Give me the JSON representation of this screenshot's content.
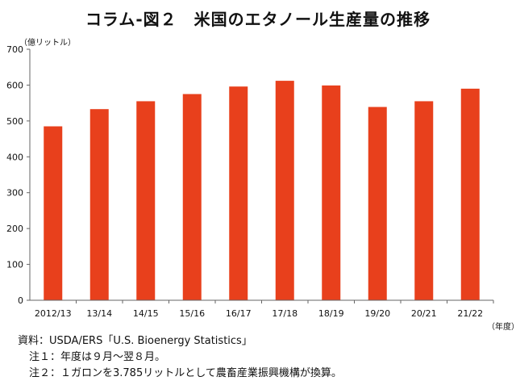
{
  "title": "コラム-図２　米国のエタノール生産量の推移",
  "chart_data": {
    "type": "bar",
    "title": "コラム-図２　米国のエタノール生産量の推移",
    "ylabel": "（億リットル）",
    "xlabel": "（年度）",
    "categories": [
      "2012/13",
      "13/14",
      "14/15",
      "15/16",
      "16/17",
      "17/18",
      "18/19",
      "19/20",
      "20/21",
      "21/22"
    ],
    "values": [
      485,
      533,
      555,
      575,
      596,
      612,
      599,
      539,
      555,
      590
    ],
    "ylim": [
      0,
      700
    ],
    "yticks": [
      0,
      100,
      200,
      300,
      400,
      500,
      600,
      700
    ],
    "bar_color": "#e8401c",
    "grid": false,
    "legend": "none"
  },
  "notes": {
    "source": "資料：USDA/ERS「U.S. Bioenergy Statistics」",
    "note1": "注１：年度は９月～翌８月。",
    "note2": "注２：１ガロンを3.785リットルとして農畜産業振興機構が換算。"
  }
}
